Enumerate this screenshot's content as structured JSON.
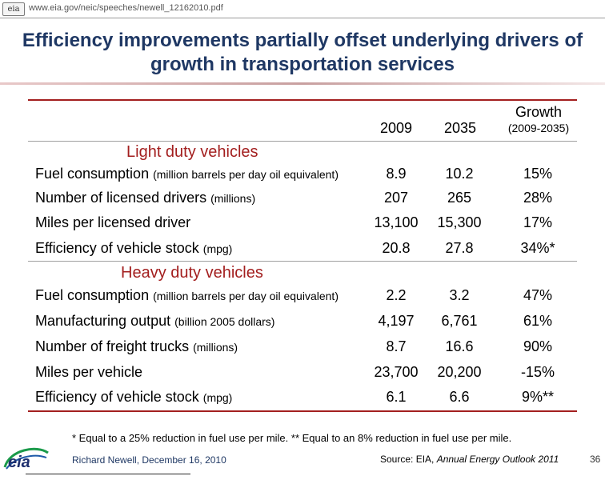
{
  "browser": {
    "logo_text": "eia",
    "url": "www.eia.gov/neic/speeches/newell_12162010.pdf"
  },
  "slide": {
    "title_line1": "Efficiency improvements partially offset underlying drivers of",
    "title_line2": "growth in transportation services",
    "columns": {
      "year1": "2009",
      "year2": "2035",
      "growth": "Growth",
      "growth_range": "(2009-2035)"
    },
    "sections": [
      {
        "heading": "Light duty vehicles",
        "rows": [
          {
            "label": "Fuel consumption",
            "unit": "(million barrels per day oil equivalent)",
            "v2009": "8.9",
            "v2035": "10.2",
            "growth": "15%"
          },
          {
            "label": "Number of licensed drivers",
            "unit": "(millions)",
            "v2009": "207",
            "v2035": "265",
            "growth": "28%"
          },
          {
            "label": "Miles per licensed driver",
            "unit": "",
            "v2009": "13,100",
            "v2035": "15,300",
            "growth": "17%"
          },
          {
            "label": "Efficiency of vehicle stock",
            "unit": "(mpg)",
            "v2009": "20.8",
            "v2035": "27.8",
            "growth": "34%*"
          }
        ]
      },
      {
        "heading": "Heavy duty vehicles",
        "rows": [
          {
            "label": "Fuel consumption",
            "unit": "(million barrels per day oil equivalent)",
            "v2009": "2.2",
            "v2035": "3.2",
            "growth": "47%"
          },
          {
            "label": "Manufacturing output",
            "unit": "(billion 2005 dollars)",
            "v2009": "4,197",
            "v2035": "6,761",
            "growth": "61%"
          },
          {
            "label": "Number of freight trucks",
            "unit": "(millions)",
            "v2009": "8.7",
            "v2035": "16.6",
            "growth": "90%"
          },
          {
            "label": "Miles per vehicle",
            "unit": "",
            "v2009": "23,700",
            "v2035": "20,200",
            "growth": "-15%"
          },
          {
            "label": "Efficiency of vehicle stock",
            "unit": "(mpg)",
            "v2009": "6.1",
            "v2035": "6.6",
            "growth": "9%**"
          }
        ]
      }
    ],
    "footnote": "* Equal to a 25% reduction in fuel use per mile. ** Equal to an 8% reduction in fuel use per mile.",
    "presenter": "Richard Newell, December 16, 2010",
    "source_prefix": "Source:  EIA, ",
    "source_title": "Annual Energy Outlook 2011",
    "page_number": "36",
    "logo_text": "eia",
    "colors": {
      "title": "#1f3864",
      "section": "#a31f1f",
      "rule": "#a31f1f"
    }
  }
}
